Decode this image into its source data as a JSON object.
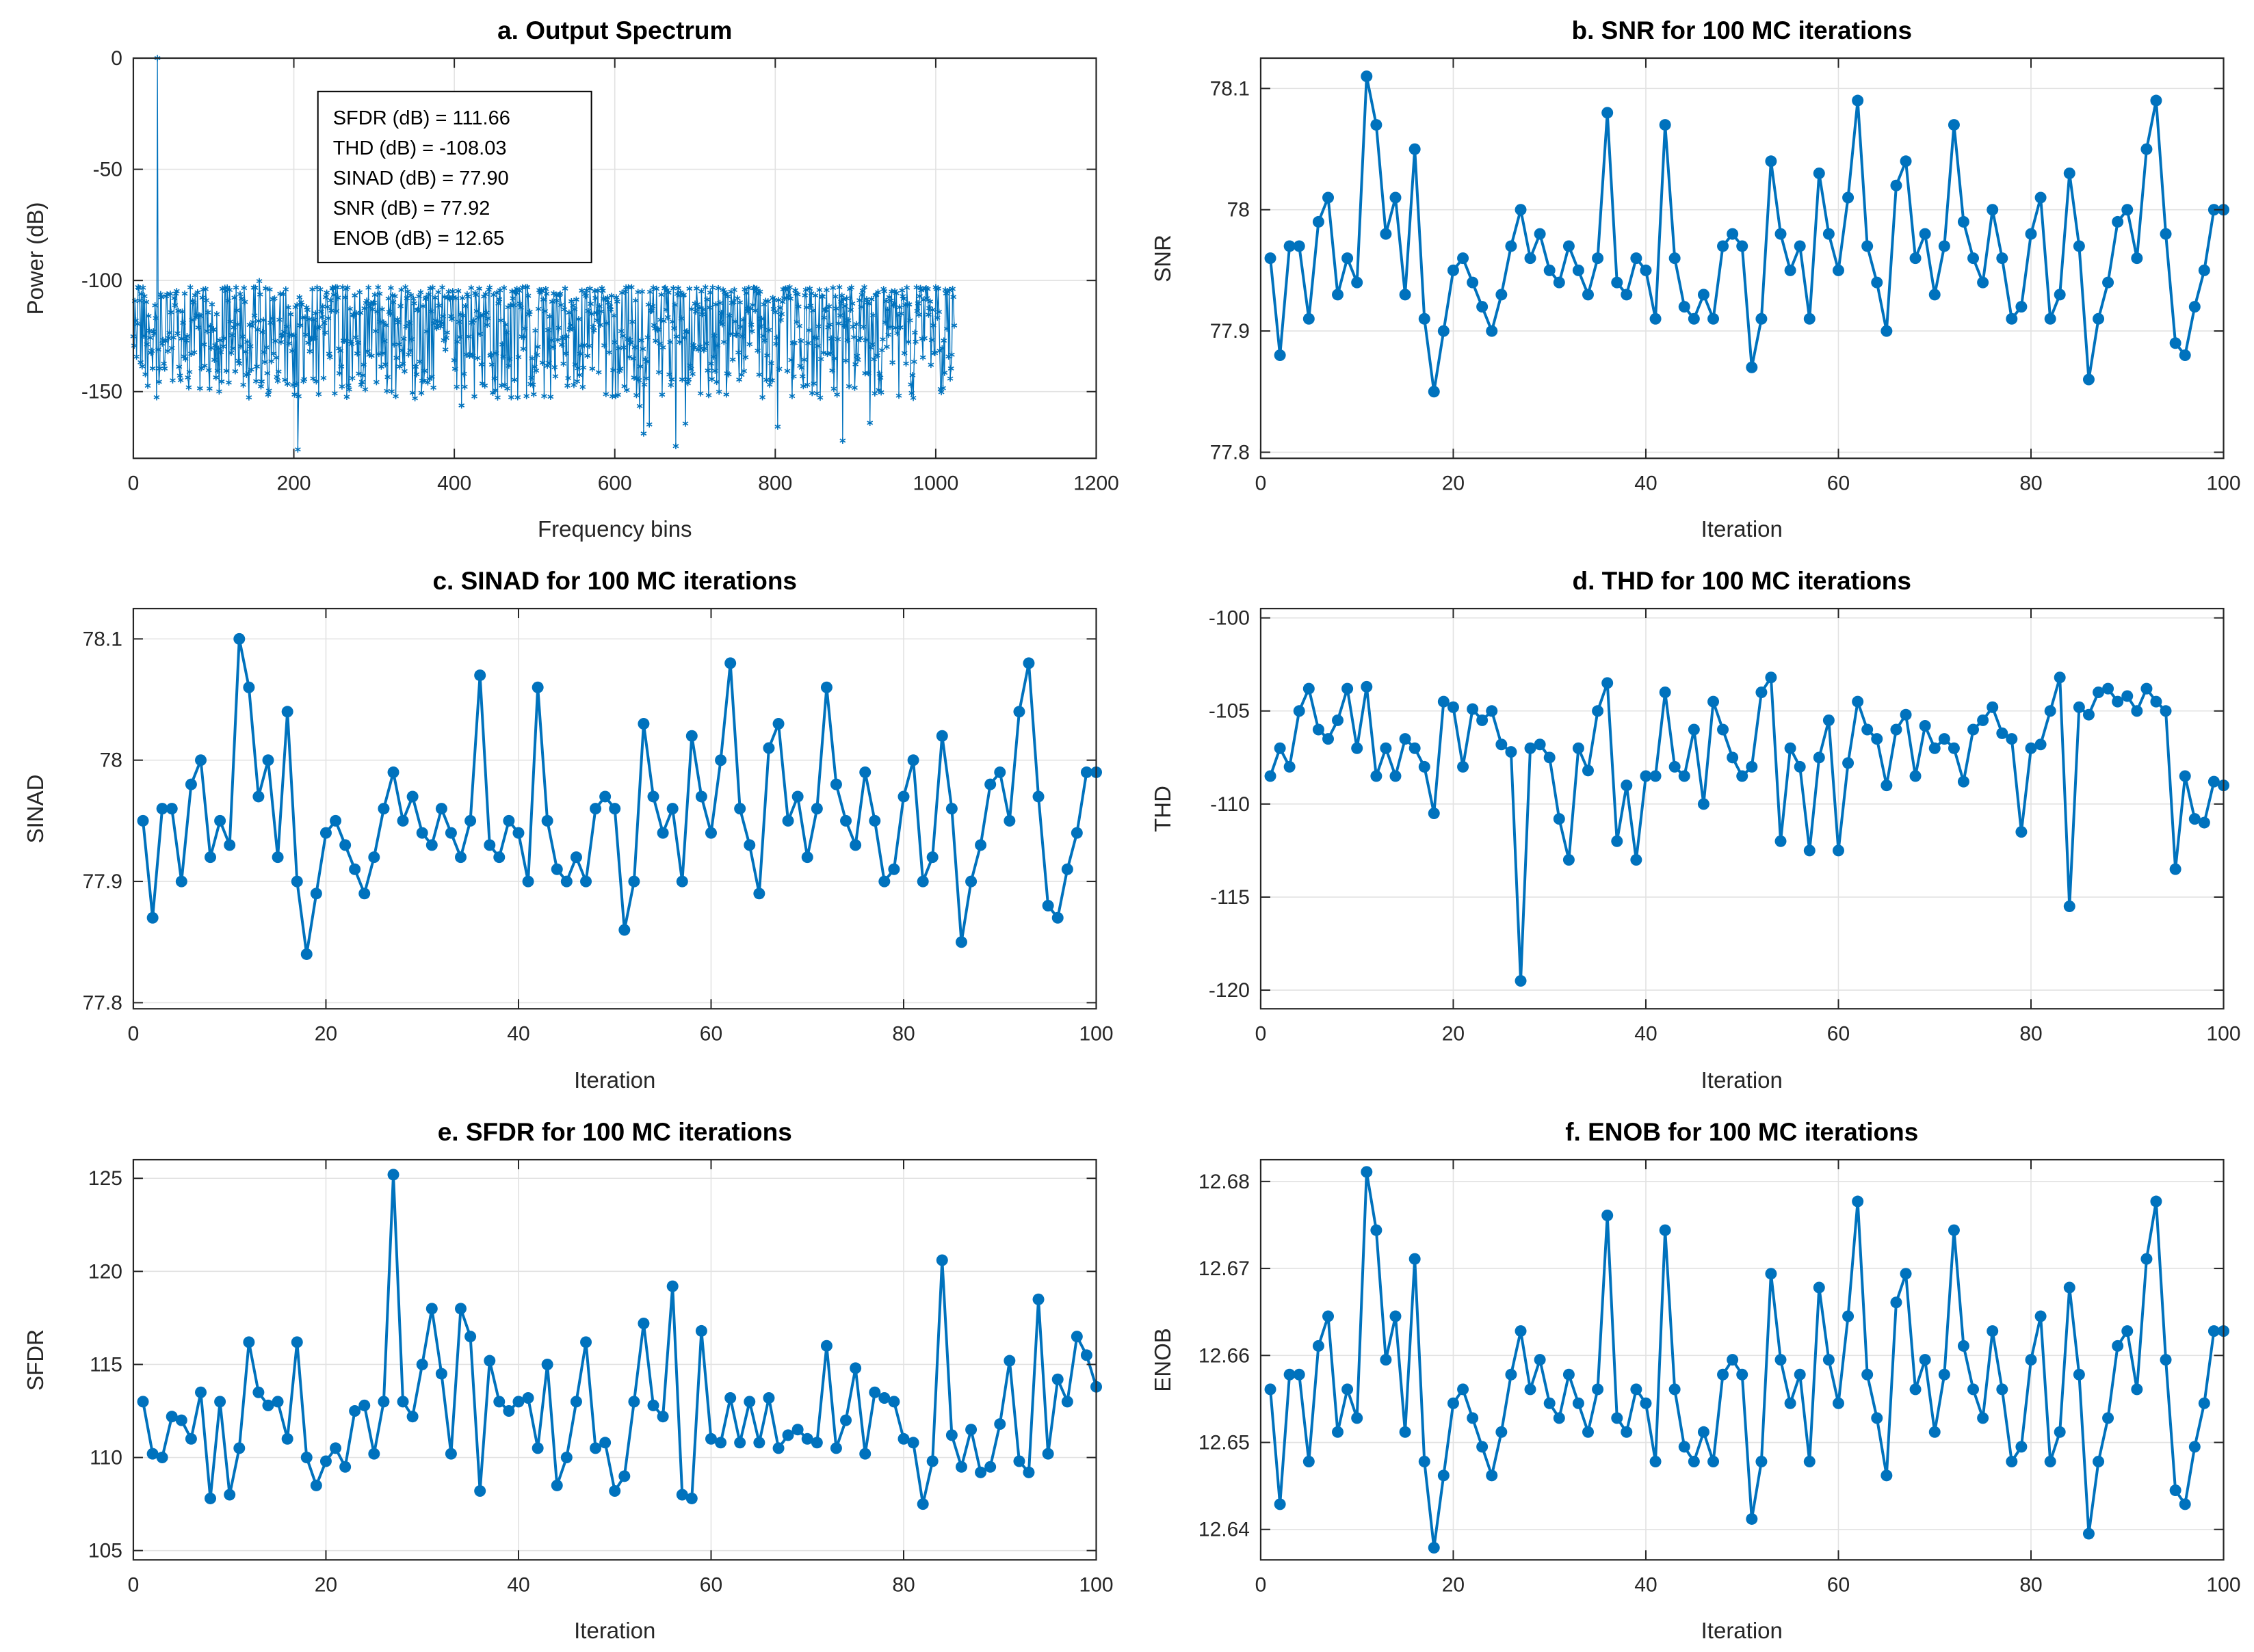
{
  "figure": {
    "accent_color": "#0072BD",
    "axis_color": "#262626",
    "grid_color": "#e2e2e2",
    "background": "#ffffff",
    "annotation_border": "#000000"
  },
  "chart_data": [
    {
      "id": "a",
      "type": "stem",
      "title": "a. Output Spectrum",
      "xlabel": "Frequency bins",
      "ylabel": "Power (dB)",
      "xlim": [
        0,
        1200
      ],
      "ylim": [
        -180,
        0
      ],
      "xticks": [
        0,
        200,
        400,
        600,
        800,
        1000,
        1200
      ],
      "yticks": [
        0,
        -50,
        -100,
        -150
      ],
      "annotation": [
        "SFDR (dB) = 111.66",
        "THD (dB) = -108.03",
        "SINAD (dB) = 77.90",
        "SNR (dB) = 77.92",
        "ENOB (dB) = 12.65"
      ],
      "fundamental": {
        "bin": 30,
        "power_db": 0
      },
      "synthesis": {
        "num_bins": 1024,
        "noise_top_db": -103,
        "noise_spread_db": 50,
        "deep_null_chance": 0.035,
        "deep_null_extra_db": 28,
        "floor_clip_db": -176,
        "seed": 42
      }
    },
    {
      "id": "b",
      "type": "line",
      "title": "b. SNR for 100 MC iterations",
      "xlabel": "Iteration",
      "ylabel": "SNR",
      "xlim": [
        0,
        100
      ],
      "ylim": [
        77.795,
        78.125
      ],
      "xticks": [
        0,
        20,
        40,
        60,
        80,
        100
      ],
      "yticks": [
        77.8,
        77.9,
        78,
        78.1
      ],
      "values": [
        77.96,
        77.88,
        77.97,
        77.97,
        77.91,
        77.99,
        78.01,
        77.93,
        77.96,
        77.94,
        78.11,
        78.07,
        77.98,
        78.01,
        77.93,
        78.05,
        77.91,
        77.85,
        77.9,
        77.95,
        77.96,
        77.94,
        77.92,
        77.9,
        77.93,
        77.97,
        78.0,
        77.96,
        77.98,
        77.95,
        77.94,
        77.97,
        77.95,
        77.93,
        77.96,
        78.08,
        77.94,
        77.93,
        77.96,
        77.95,
        77.91,
        78.07,
        77.96,
        77.92,
        77.91,
        77.93,
        77.91,
        77.97,
        77.98,
        77.97,
        77.87,
        77.91,
        78.04,
        77.98,
        77.95,
        77.97,
        77.91,
        78.03,
        77.98,
        77.95,
        78.01,
        78.09,
        77.97,
        77.94,
        77.9,
        78.02,
        78.04,
        77.96,
        77.98,
        77.93,
        77.97,
        78.07,
        77.99,
        77.96,
        77.94,
        78.0,
        77.96,
        77.91,
        77.92,
        77.98,
        78.01,
        77.91,
        77.93,
        78.03,
        77.97,
        77.86,
        77.91,
        77.94,
        77.99,
        78.0,
        77.96,
        78.05,
        78.09,
        77.98,
        77.89,
        77.88,
        77.92,
        77.95,
        78.0,
        78.0
      ]
    },
    {
      "id": "c",
      "type": "line",
      "title": "c. SINAD for 100 MC iterations",
      "xlabel": "Iteration",
      "ylabel": "SINAD",
      "xlim": [
        0,
        100
      ],
      "ylim": [
        77.795,
        78.125
      ],
      "xticks": [
        0,
        20,
        40,
        60,
        80,
        100
      ],
      "yticks": [
        77.8,
        77.9,
        78,
        78.1
      ],
      "values": [
        77.95,
        77.87,
        77.96,
        77.96,
        77.9,
        77.98,
        78.0,
        77.92,
        77.95,
        77.93,
        78.1,
        78.06,
        77.97,
        78.0,
        77.92,
        78.04,
        77.9,
        77.84,
        77.89,
        77.94,
        77.95,
        77.93,
        77.91,
        77.89,
        77.92,
        77.96,
        77.99,
        77.95,
        77.97,
        77.94,
        77.93,
        77.96,
        77.94,
        77.92,
        77.95,
        78.07,
        77.93,
        77.92,
        77.95,
        77.94,
        77.9,
        78.06,
        77.95,
        77.91,
        77.9,
        77.92,
        77.9,
        77.96,
        77.97,
        77.96,
        77.86,
        77.9,
        78.03,
        77.97,
        77.94,
        77.96,
        77.9,
        78.02,
        77.97,
        77.94,
        78.0,
        78.08,
        77.96,
        77.93,
        77.89,
        78.01,
        78.03,
        77.95,
        77.97,
        77.92,
        77.96,
        78.06,
        77.98,
        77.95,
        77.93,
        77.99,
        77.95,
        77.9,
        77.91,
        77.97,
        78.0,
        77.9,
        77.92,
        78.02,
        77.96,
        77.85,
        77.9,
        77.93,
        77.98,
        77.99,
        77.95,
        78.04,
        78.08,
        77.97,
        77.88,
        77.87,
        77.91,
        77.94,
        77.99,
        77.99
      ]
    },
    {
      "id": "d",
      "type": "line",
      "title": "d. THD for 100 MC iterations",
      "xlabel": "Iteration",
      "ylabel": "THD",
      "xlim": [
        0,
        100
      ],
      "ylim": [
        -121,
        -99.5
      ],
      "xticks": [
        0,
        20,
        40,
        60,
        80,
        100
      ],
      "yticks": [
        -120,
        -115,
        -110,
        -105,
        -100
      ],
      "values": [
        -108.5,
        -107.0,
        -108.0,
        -105.0,
        -103.8,
        -106.0,
        -106.5,
        -105.5,
        -103.8,
        -107.0,
        -103.7,
        -108.5,
        -107.0,
        -108.5,
        -106.5,
        -107.0,
        -108.0,
        -110.5,
        -104.5,
        -104.8,
        -108.0,
        -104.9,
        -105.5,
        -105.0,
        -106.8,
        -107.2,
        -119.5,
        -107.0,
        -106.8,
        -107.5,
        -110.8,
        -113.0,
        -107.0,
        -108.2,
        -105.0,
        -103.5,
        -112.0,
        -109.0,
        -113.0,
        -108.5,
        -108.5,
        -104.0,
        -108.0,
        -108.5,
        -106.0,
        -110.0,
        -104.5,
        -106.0,
        -107.5,
        -108.5,
        -108.0,
        -104.0,
        -103.2,
        -112.0,
        -107.0,
        -108.0,
        -112.5,
        -107.5,
        -105.5,
        -112.5,
        -107.8,
        -104.5,
        -106.0,
        -106.5,
        -109.0,
        -106.0,
        -105.2,
        -108.5,
        -105.8,
        -107.0,
        -106.5,
        -107.0,
        -108.8,
        -106.0,
        -105.5,
        -104.8,
        -106.2,
        -106.5,
        -111.5,
        -107.0,
        -106.8,
        -105.0,
        -103.2,
        -115.5,
        -104.8,
        -105.2,
        -104.0,
        -103.8,
        -104.5,
        -104.2,
        -105.0,
        -103.8,
        -104.5,
        -105.0,
        -113.5,
        -108.5,
        -110.8,
        -111.0,
        -108.8,
        -109.0
      ]
    },
    {
      "id": "e",
      "type": "line",
      "title": "e. SFDR for 100 MC iterations",
      "xlabel": "Iteration",
      "ylabel": "SFDR",
      "xlim": [
        0,
        100
      ],
      "ylim": [
        104.5,
        126
      ],
      "xticks": [
        0,
        20,
        40,
        60,
        80,
        100
      ],
      "yticks": [
        105,
        110,
        115,
        120,
        125
      ],
      "values": [
        113.0,
        110.2,
        110.0,
        112.2,
        112.0,
        111.0,
        113.5,
        107.8,
        113.0,
        108.0,
        110.5,
        116.2,
        113.5,
        112.8,
        113.0,
        111.0,
        116.2,
        110.0,
        108.5,
        109.8,
        110.5,
        109.5,
        112.5,
        112.8,
        110.2,
        113.0,
        125.2,
        113.0,
        112.2,
        115.0,
        118.0,
        114.5,
        110.2,
        118.0,
        116.5,
        108.2,
        115.2,
        113.0,
        112.5,
        113.0,
        113.2,
        110.5,
        115.0,
        108.5,
        110.0,
        113.0,
        116.2,
        110.5,
        110.8,
        108.2,
        109.0,
        113.0,
        117.2,
        112.8,
        112.2,
        119.2,
        108.0,
        107.8,
        116.8,
        111.0,
        110.8,
        113.2,
        110.8,
        113.0,
        110.8,
        113.2,
        110.5,
        111.2,
        111.5,
        111.0,
        110.8,
        116.0,
        110.5,
        112.0,
        114.8,
        110.2,
        113.5,
        113.2,
        113.0,
        111.0,
        110.8,
        107.5,
        109.8,
        120.6,
        111.2,
        109.5,
        111.5,
        109.2,
        109.5,
        111.8,
        115.2,
        109.8,
        109.2,
        118.5,
        110.2,
        114.2,
        113.0,
        116.5,
        115.5,
        113.8
      ]
    },
    {
      "id": "f",
      "type": "line",
      "title": "f. ENOB for 100 MC iterations",
      "xlabel": "Iteration",
      "ylabel": "ENOB",
      "xlim": [
        0,
        100
      ],
      "ylim": [
        12.6365,
        12.6825
      ],
      "xticks": [
        0,
        20,
        40,
        60,
        80,
        100
      ],
      "yticks": [
        12.64,
        12.65,
        12.66,
        12.67,
        12.68
      ],
      "values": [
        12.6561,
        12.6429,
        12.6578,
        12.6578,
        12.6478,
        12.6611,
        12.6645,
        12.6512,
        12.6561,
        12.6528,
        12.6811,
        12.6744,
        12.6595,
        12.6645,
        12.6512,
        12.6711,
        12.6478,
        12.6379,
        12.6462,
        12.6545,
        12.6561,
        12.6528,
        12.6495,
        12.6462,
        12.6512,
        12.6578,
        12.6628,
        12.6561,
        12.6595,
        12.6545,
        12.6528,
        12.6578,
        12.6545,
        12.6512,
        12.6561,
        12.6761,
        12.6528,
        12.6512,
        12.6561,
        12.6545,
        12.6478,
        12.6744,
        12.6561,
        12.6495,
        12.6478,
        12.6512,
        12.6478,
        12.6578,
        12.6595,
        12.6578,
        12.6412,
        12.6478,
        12.6694,
        12.6595,
        12.6545,
        12.6578,
        12.6478,
        12.6678,
        12.6595,
        12.6545,
        12.6645,
        12.6777,
        12.6578,
        12.6528,
        12.6462,
        12.6661,
        12.6694,
        12.6561,
        12.6595,
        12.6512,
        12.6578,
        12.6744,
        12.6611,
        12.6561,
        12.6528,
        12.6628,
        12.6561,
        12.6478,
        12.6495,
        12.6595,
        12.6645,
        12.6478,
        12.6512,
        12.6678,
        12.6578,
        12.6395,
        12.6478,
        12.6528,
        12.6611,
        12.6628,
        12.6561,
        12.6711,
        12.6777,
        12.6595,
        12.6445,
        12.6429,
        12.6495,
        12.6545,
        12.6628,
        12.6628
      ]
    }
  ]
}
